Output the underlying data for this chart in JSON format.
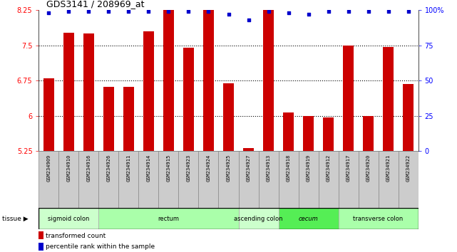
{
  "title": "GDS3141 / 208969_at",
  "samples": [
    "GSM234909",
    "GSM234910",
    "GSM234916",
    "GSM234926",
    "GSM234911",
    "GSM234914",
    "GSM234915",
    "GSM234923",
    "GSM234924",
    "GSM234925",
    "GSM234927",
    "GSM234913",
    "GSM234918",
    "GSM234919",
    "GSM234912",
    "GSM234917",
    "GSM234920",
    "GSM234921",
    "GSM234922"
  ],
  "bar_values": [
    6.8,
    7.77,
    7.76,
    6.62,
    6.62,
    7.8,
    8.55,
    7.45,
    8.3,
    6.7,
    5.32,
    8.3,
    6.07,
    6.0,
    5.96,
    7.5,
    6.0,
    7.47,
    6.68
  ],
  "percentile_values": [
    98,
    99,
    99,
    99,
    99,
    99,
    99,
    99,
    99,
    97,
    93,
    99,
    98,
    97,
    99,
    99,
    99,
    99,
    99
  ],
  "ymin": 5.25,
  "ymax": 8.25,
  "yticks": [
    5.25,
    6.0,
    6.75,
    7.5,
    8.25
  ],
  "ytick_labels": [
    "5.25",
    "6",
    "6.75",
    "7.5",
    "8.25"
  ],
  "right_yticks": [
    0,
    25,
    50,
    75,
    100
  ],
  "right_ytick_labels": [
    "0",
    "25",
    "50",
    "75",
    "100%"
  ],
  "bar_color": "#cc0000",
  "dot_color": "#0000cc",
  "tissue_groups": [
    {
      "label": "sigmoid colon",
      "start": 0,
      "end": 3,
      "color": "#ccffcc",
      "italic": false
    },
    {
      "label": "rectum",
      "start": 3,
      "end": 10,
      "color": "#aaffaa",
      "italic": false
    },
    {
      "label": "ascending colon",
      "start": 10,
      "end": 12,
      "color": "#ccffcc",
      "italic": false
    },
    {
      "label": "cecum",
      "start": 12,
      "end": 15,
      "color": "#55ee55",
      "italic": true
    },
    {
      "label": "transverse colon",
      "start": 15,
      "end": 19,
      "color": "#aaffaa",
      "italic": false
    }
  ],
  "legend_bar_label": "transformed count",
  "legend_dot_label": "percentile rank within the sample",
  "gridlines": [
    6.0,
    6.75,
    7.5
  ],
  "sample_box_color": "#cccccc",
  "sample_box_edge": "#888888"
}
